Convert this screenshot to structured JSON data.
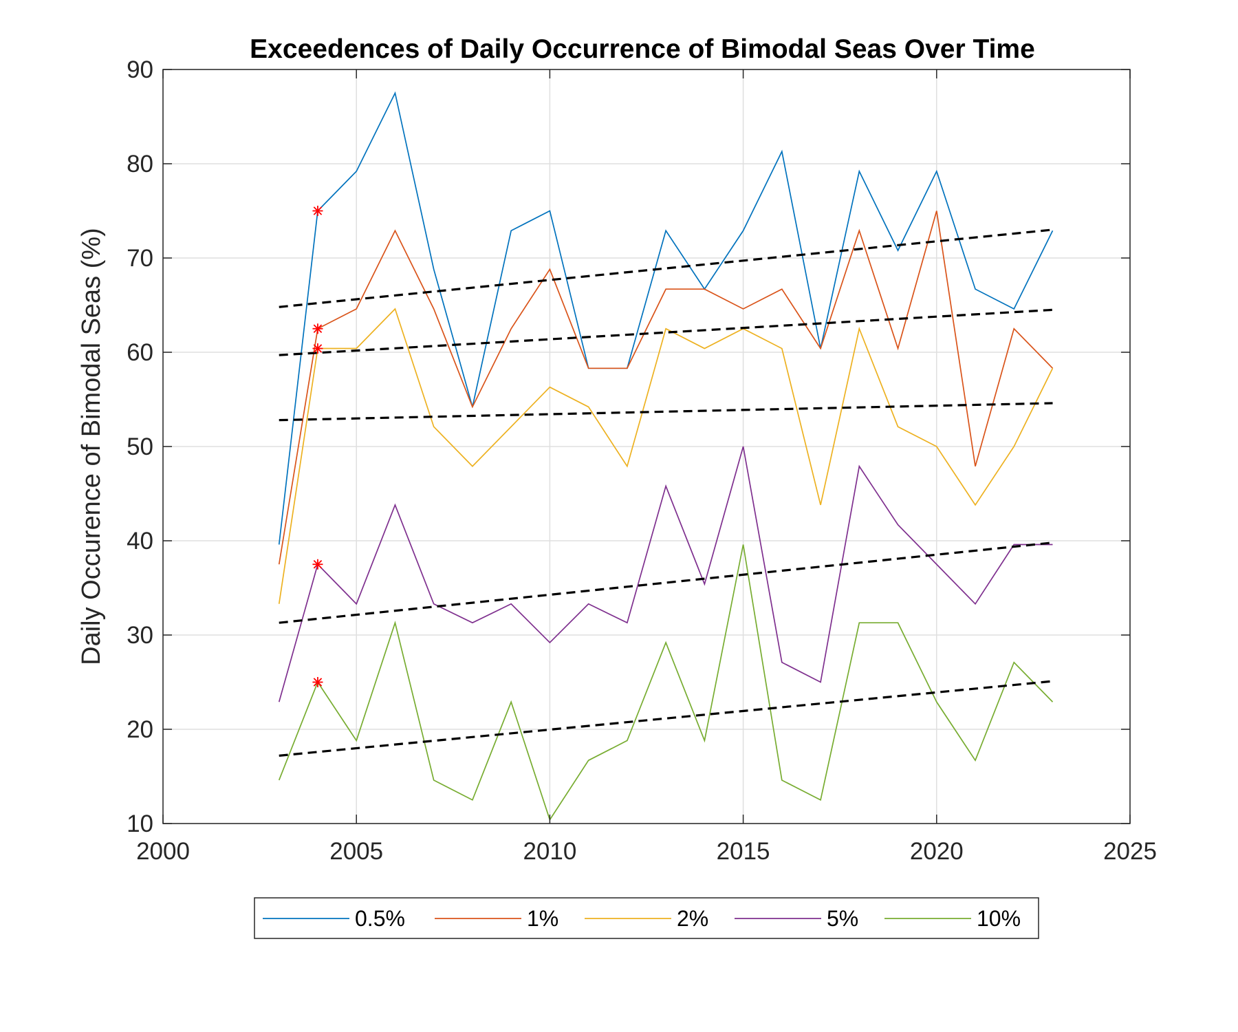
{
  "chart_data": {
    "type": "line",
    "title": "Exceedences of Daily Occurrence of Bimodal Seas Over Time",
    "xlabel": "",
    "ylabel": "Daily Occurence of Bimodal Seas (%)",
    "xlim": [
      2000,
      2025
    ],
    "ylim": [
      10,
      90
    ],
    "xticks": [
      "2000",
      "2005",
      "2010",
      "2015",
      "2020",
      "2025"
    ],
    "yticks": [
      "10",
      "20",
      "30",
      "40",
      "50",
      "60",
      "70",
      "80",
      "90"
    ],
    "grid": true,
    "legend_position": "bottom-outside",
    "x": [
      2003,
      2004,
      2005,
      2006,
      2007,
      2008,
      2009,
      2010,
      2011,
      2012,
      2013,
      2014,
      2015,
      2016,
      2017,
      2018,
      2019,
      2020,
      2021,
      2022,
      2023
    ],
    "series": [
      {
        "name": "0.5%",
        "color": "#0072BD",
        "values": [
          39.6,
          75.0,
          79.2,
          87.5,
          68.8,
          54.2,
          72.9,
          75.0,
          58.3,
          58.3,
          72.9,
          66.7,
          72.9,
          81.3,
          60.4,
          79.2,
          70.8,
          79.2,
          66.7,
          64.6,
          72.9
        ]
      },
      {
        "name": "1%",
        "color": "#D95319",
        "values": [
          37.5,
          62.5,
          64.6,
          72.9,
          64.6,
          54.2,
          62.5,
          68.8,
          58.3,
          58.3,
          66.7,
          66.7,
          64.6,
          66.7,
          60.4,
          72.9,
          60.4,
          75.0,
          47.9,
          62.5,
          58.3
        ]
      },
      {
        "name": "2%",
        "color": "#EDB120",
        "values": [
          33.3,
          60.4,
          60.4,
          64.6,
          52.1,
          47.9,
          52.1,
          56.3,
          54.2,
          47.9,
          62.5,
          60.4,
          62.5,
          60.4,
          43.8,
          62.5,
          52.1,
          50.0,
          43.8,
          50.0,
          58.3
        ]
      },
      {
        "name": "5%",
        "color": "#7E2F8E",
        "values": [
          22.9,
          37.5,
          33.3,
          43.8,
          33.3,
          31.3,
          33.3,
          29.2,
          33.3,
          31.3,
          45.8,
          35.4,
          50.0,
          27.1,
          25.0,
          47.9,
          41.7,
          37.5,
          33.3,
          39.6,
          39.6
        ]
      },
      {
        "name": "10%",
        "color": "#77AC30",
        "values": [
          14.6,
          25.0,
          18.8,
          31.3,
          14.6,
          12.5,
          22.9,
          10.4,
          16.7,
          18.8,
          29.2,
          18.8,
          39.6,
          14.6,
          12.5,
          31.3,
          31.3,
          22.9,
          16.7,
          27.1,
          22.9
        ]
      }
    ],
    "trend_lines": [
      {
        "x": [
          2003,
          2023
        ],
        "y": [
          64.8,
          73.0
        ]
      },
      {
        "x": [
          2003,
          2023
        ],
        "y": [
          59.7,
          64.5
        ]
      },
      {
        "x": [
          2003,
          2023
        ],
        "y": [
          52.8,
          54.6
        ]
      },
      {
        "x": [
          2003,
          2023
        ],
        "y": [
          31.3,
          39.8
        ]
      },
      {
        "x": [
          2003,
          2023
        ],
        "y": [
          17.2,
          25.1
        ]
      }
    ],
    "markers": [
      {
        "x": 2004,
        "y": 75.0
      },
      {
        "x": 2004,
        "y": 62.5
      },
      {
        "x": 2004,
        "y": 60.4
      },
      {
        "x": 2004,
        "y": 37.5
      },
      {
        "x": 2004,
        "y": 25.0
      }
    ],
    "trend_color": "#000000",
    "marker_color": "#FF0000"
  }
}
